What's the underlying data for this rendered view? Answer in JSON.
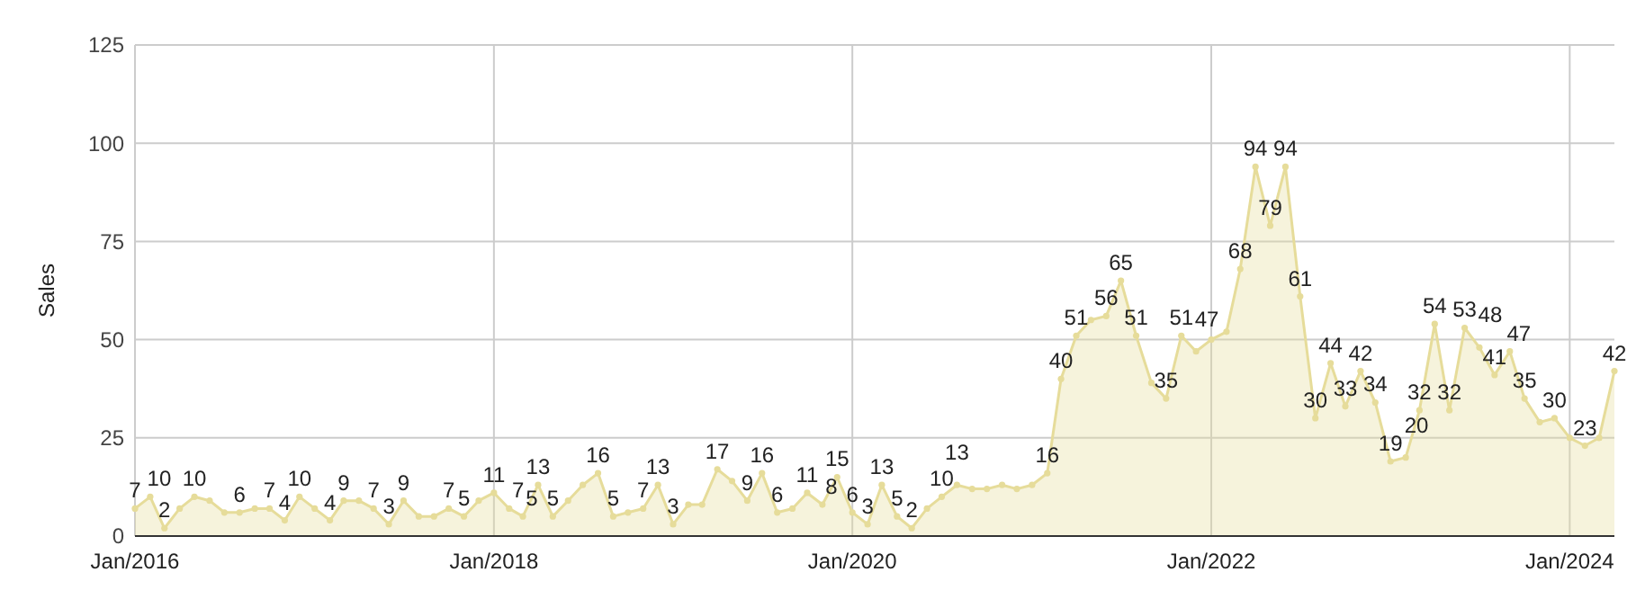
{
  "chart_data": {
    "type": "area",
    "ylabel": "Sales",
    "xlim": [
      "2016-01",
      "2024-04"
    ],
    "ylim": [
      0,
      125
    ],
    "yticks": [
      0,
      25,
      50,
      75,
      100,
      125
    ],
    "xticks": [
      {
        "value": "2016-01",
        "label": "Jan/2016"
      },
      {
        "value": "2018-01",
        "label": "Jan/2018"
      },
      {
        "value": "2020-01",
        "label": "Jan/2020"
      },
      {
        "value": "2022-01",
        "label": "Jan/2022"
      },
      {
        "value": "2024-01",
        "label": "Jan/2024"
      }
    ],
    "grid": true,
    "marker": "circle",
    "x": [
      "2016-01",
      "2016-02",
      "2016-03",
      "2016-04",
      "2016-05",
      "2016-06",
      "2016-07",
      "2016-08",
      "2016-09",
      "2016-10",
      "2016-11",
      "2016-12",
      "2017-01",
      "2017-02",
      "2017-03",
      "2017-04",
      "2017-05",
      "2017-06",
      "2017-07",
      "2017-08",
      "2017-09",
      "2017-10",
      "2017-11",
      "2017-12",
      "2018-01",
      "2018-02",
      "2018-03",
      "2018-04",
      "2018-05",
      "2018-06",
      "2018-07",
      "2018-08",
      "2018-09",
      "2018-10",
      "2018-11",
      "2018-12",
      "2019-01",
      "2019-02",
      "2019-03",
      "2019-04",
      "2019-05",
      "2019-06",
      "2019-07",
      "2019-08",
      "2019-09",
      "2019-10",
      "2019-11",
      "2019-12",
      "2020-01",
      "2020-02",
      "2020-03",
      "2020-04",
      "2020-05",
      "2020-06",
      "2020-07",
      "2020-08",
      "2020-09",
      "2020-10",
      "2020-11",
      "2020-12",
      "2021-01",
      "2021-02",
      "2021-03",
      "2021-04",
      "2021-05",
      "2021-06",
      "2021-07",
      "2021-08",
      "2021-09",
      "2021-10",
      "2021-11",
      "2021-12",
      "2022-01",
      "2022-02",
      "2022-03",
      "2022-04",
      "2022-05",
      "2022-06",
      "2022-07",
      "2022-08",
      "2022-09",
      "2022-10",
      "2022-11",
      "2022-12",
      "2023-01",
      "2023-02",
      "2023-03",
      "2023-04",
      "2023-05",
      "2023-06",
      "2023-07",
      "2023-08",
      "2023-09",
      "2023-10",
      "2023-11",
      "2023-12",
      "2024-01",
      "2024-02",
      "2024-03",
      "2024-04"
    ],
    "series": [
      {
        "color": "#e6dc9a",
        "values": [
          7,
          10,
          2,
          7,
          10,
          9,
          6,
          6,
          7,
          7,
          4,
          10,
          7,
          4,
          9,
          9,
          7,
          3,
          9,
          5,
          5,
          7,
          5,
          9,
          11,
          7,
          5,
          13,
          5,
          9,
          13,
          16,
          5,
          6,
          7,
          13,
          3,
          8,
          8,
          17,
          14,
          9,
          16,
          6,
          7,
          11,
          8,
          15,
          6,
          3,
          13,
          5,
          2,
          7,
          10,
          13,
          12,
          12,
          13,
          12,
          13,
          16,
          40,
          51,
          55,
          56,
          65,
          51,
          39,
          35,
          51,
          47,
          50,
          52,
          68,
          94,
          79,
          94,
          61,
          30,
          44,
          33,
          42,
          34,
          19,
          20,
          32,
          54,
          32,
          53,
          48,
          41,
          47,
          35,
          29,
          30,
          25,
          23,
          25,
          42
        ],
        "value_labels": [
          "7",
          "10",
          "2",
          null,
          "10",
          null,
          null,
          "6",
          null,
          "7",
          "4",
          "10",
          null,
          "4",
          "9",
          null,
          "7",
          "3",
          "9",
          null,
          null,
          "7",
          "5",
          null,
          "11",
          "7",
          "5",
          "13",
          "5",
          null,
          null,
          "16",
          "5",
          null,
          "7",
          "13",
          "3",
          null,
          null,
          "17",
          null,
          "9",
          "16",
          "6",
          null,
          "11",
          "8",
          "15",
          "6",
          "3",
          "13",
          "5",
          "2",
          null,
          "10",
          "13",
          null,
          null,
          null,
          null,
          null,
          "16",
          "40",
          "51",
          null,
          "56",
          "65",
          "51",
          null,
          "35",
          "51",
          "47",
          null,
          null,
          "68",
          "94",
          "79",
          "94",
          "61",
          "30",
          "44",
          "33",
          "42",
          "34",
          "19",
          "20",
          "32",
          "54",
          "32",
          "53",
          "48",
          "41",
          "47",
          "35",
          null,
          "30",
          null,
          "23",
          null,
          "42"
        ]
      }
    ]
  }
}
